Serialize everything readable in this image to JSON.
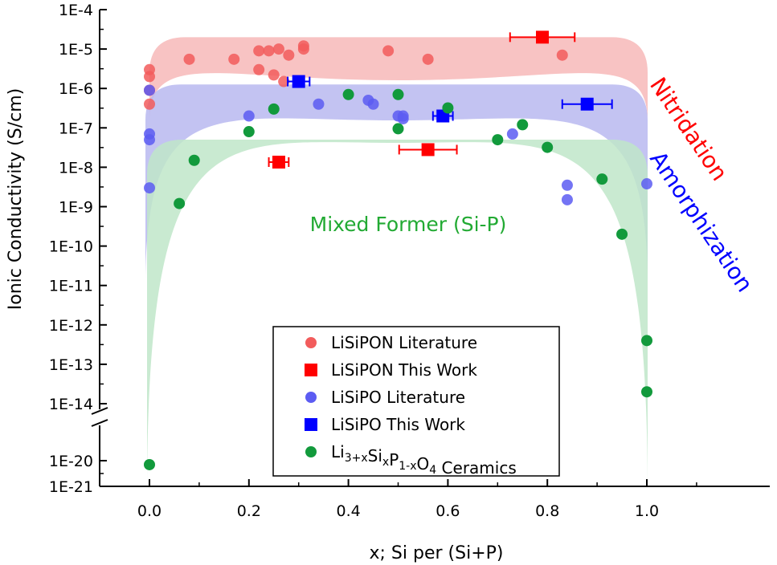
{
  "chart_data": {
    "type": "scatter",
    "xlabel": "x; Si per (Si+P)",
    "ylabel": "Ionic Conductivity (S/cm)",
    "xlim": [
      -0.12,
      1.12
    ],
    "x_ticks": [
      "0.0",
      "0.2",
      "0.4",
      "0.6",
      "0.8",
      "1.0"
    ],
    "x_tick_values": [
      0,
      0.2,
      0.4,
      0.6,
      0.8,
      1.0
    ],
    "y_scale": "log",
    "y_axis_break": [
      -20,
      -14
    ],
    "y_ticks": [
      "1E-21",
      "1E-20",
      "1E-14",
      "1E-13",
      "1E-12",
      "1E-11",
      "1E-10",
      "1E-9",
      "1E-8",
      "1E-7",
      "1E-6",
      "1E-5",
      "1E-4"
    ],
    "y_tick_exponents": [
      -21,
      -20,
      -14,
      -13,
      -12,
      -11,
      -10,
      -9,
      -8,
      -7,
      -6,
      -5,
      -4
    ],
    "legend_position": "bottom-center",
    "annotations": [
      {
        "text": "Nitridation",
        "color": "#ff0000"
      },
      {
        "text": "Amorphization",
        "color": "#0000ff"
      },
      {
        "text": "Mixed Former (Si-P)",
        "color": "#22aa33"
      }
    ],
    "bands": [
      {
        "label": "Nitridation",
        "color": "#f7b8b8",
        "y_top_exponent": -4.7,
        "y_bottom_exponent": -6.8
      },
      {
        "label": "Amorphization",
        "color": "#b9b9f0",
        "y_top_exponent": -5.9,
        "y_bottom_exponent": -10.9
      },
      {
        "label": "Mixed Former (Si-P)",
        "color": "#bfe6c9",
        "y_top_exponent": -7.3,
        "y_bottom_exponent": -21
      }
    ],
    "series": [
      {
        "name": "LiSiPON Literature",
        "marker": "circle",
        "color": "#f25c5c",
        "points": [
          {
            "x": 0.0,
            "y": 3e-06
          },
          {
            "x": 0.0,
            "y": 2e-06
          },
          {
            "x": 0.0,
            "y": 9e-07
          },
          {
            "x": 0.0,
            "y": 4e-07
          },
          {
            "x": 0.08,
            "y": 5.5e-06
          },
          {
            "x": 0.17,
            "y": 5.5e-06
          },
          {
            "x": 0.22,
            "y": 9e-06
          },
          {
            "x": 0.24,
            "y": 9e-06
          },
          {
            "x": 0.26,
            "y": 1e-05
          },
          {
            "x": 0.28,
            "y": 7e-06
          },
          {
            "x": 0.31,
            "y": 1.2e-05
          },
          {
            "x": 0.31,
            "y": 1e-05
          },
          {
            "x": 0.22,
            "y": 3e-06
          },
          {
            "x": 0.25,
            "y": 2.2e-06
          },
          {
            "x": 0.27,
            "y": 1.5e-06
          },
          {
            "x": 0.48,
            "y": 9e-06
          },
          {
            "x": 0.56,
            "y": 5.5e-06
          },
          {
            "x": 0.83,
            "y": 7e-06
          }
        ]
      },
      {
        "name": "LiSiPON This Work",
        "marker": "square",
        "color": "#ff0000",
        "points": [
          {
            "x": 0.79,
            "y": 2e-05,
            "xerr": 0.065
          },
          {
            "x": 0.26,
            "y": 1.35e-08,
            "xerr": 0.02
          },
          {
            "x": 0.56,
            "y": 2.8e-08,
            "xerr": 0.058
          }
        ]
      },
      {
        "name": "LiSiPO Literature",
        "marker": "circle",
        "color": "#5c5cf2",
        "points": [
          {
            "x": 0.0,
            "y": 9e-07
          },
          {
            "x": 0.0,
            "y": 7e-08
          },
          {
            "x": 0.0,
            "y": 5e-08
          },
          {
            "x": 0.0,
            "y": 3e-09
          },
          {
            "x": 0.2,
            "y": 2e-07
          },
          {
            "x": 0.34,
            "y": 4e-07
          },
          {
            "x": 0.44,
            "y": 5e-07
          },
          {
            "x": 0.45,
            "y": 4e-07
          },
          {
            "x": 0.5,
            "y": 2e-07
          },
          {
            "x": 0.51,
            "y": 1.7e-07
          },
          {
            "x": 0.51,
            "y": 2e-07
          },
          {
            "x": 0.73,
            "y": 7e-08
          },
          {
            "x": 0.84,
            "y": 3.5e-09
          },
          {
            "x": 0.84,
            "y": 1.5e-09
          },
          {
            "x": 1.0,
            "y": 3.8e-09
          }
        ]
      },
      {
        "name": "LiSiPO This Work",
        "marker": "square",
        "color": "#0000ff",
        "points": [
          {
            "x": 0.3,
            "y": 1.5e-06,
            "xerr": 0.022
          },
          {
            "x": 0.59,
            "y": 2e-07,
            "xerr": 0.02
          },
          {
            "x": 0.88,
            "y": 4e-07,
            "xerr": 0.05
          }
        ]
      },
      {
        "name": "Li3+xSixP1-xO4 Ceramics",
        "marker": "circle",
        "color": "#129a3c",
        "points": [
          {
            "x": 0.0,
            "y": 7e-21
          },
          {
            "x": 0.06,
            "y": 1.2e-09
          },
          {
            "x": 0.09,
            "y": 1.5e-08
          },
          {
            "x": 0.2,
            "y": 8e-08
          },
          {
            "x": 0.25,
            "y": 3e-07
          },
          {
            "x": 0.4,
            "y": 7e-07
          },
          {
            "x": 0.5,
            "y": 7e-07
          },
          {
            "x": 0.5,
            "y": 9.5e-08
          },
          {
            "x": 0.6,
            "y": 3.2e-07
          },
          {
            "x": 0.7,
            "y": 5e-08
          },
          {
            "x": 0.75,
            "y": 1.2e-07
          },
          {
            "x": 0.8,
            "y": 3.2e-08
          },
          {
            "x": 0.91,
            "y": 5e-09
          },
          {
            "x": 0.95,
            "y": 2e-10
          },
          {
            "x": 1.0,
            "y": 4e-13
          },
          {
            "x": 1.0,
            "y": 2e-14
          }
        ]
      }
    ]
  }
}
